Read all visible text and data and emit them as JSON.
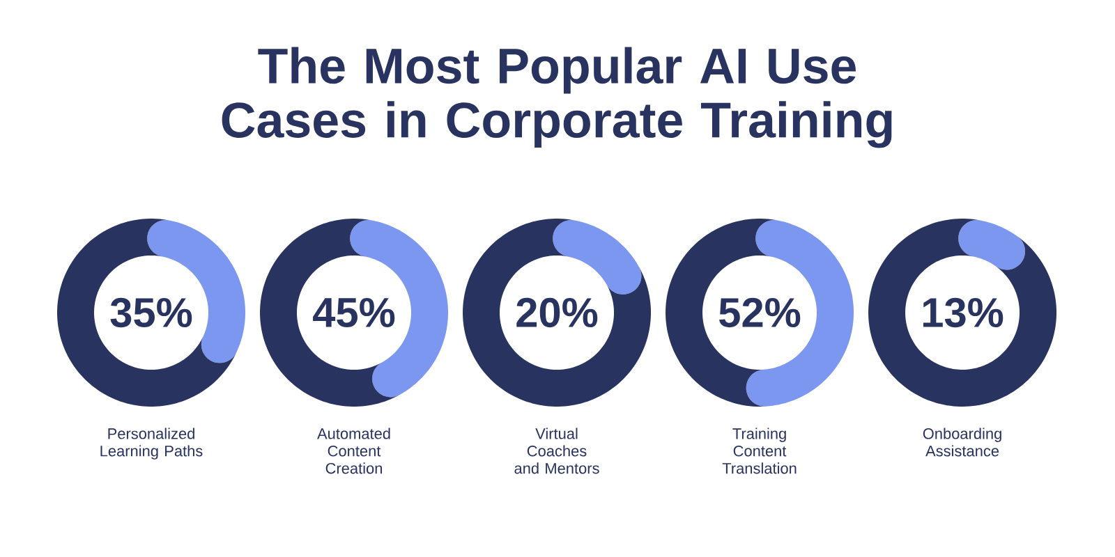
{
  "chart_data": [
    {
      "type": "other",
      "title": "The Most Popular AI Use Cases in Corporate Training"
    },
    {
      "type": "donut",
      "title": "Personalized Learning Paths",
      "categories": [
        null,
        null
      ],
      "values": [
        35,
        65
      ],
      "colors": [
        "#7b97f0",
        "#28335f"
      ],
      "annotations": [
        "35%"
      ]
    },
    {
      "type": "donut",
      "title": "Automated Content Creation",
      "categories": [
        null,
        null
      ],
      "values": [
        45,
        55
      ],
      "colors": [
        "#7b97f0",
        "#28335f"
      ],
      "annotations": [
        "45%"
      ]
    },
    {
      "type": "donut",
      "title": "Virtual Coaches and Mentors",
      "categories": [
        null,
        null
      ],
      "values": [
        20,
        80
      ],
      "colors": [
        "#7b97f0",
        "#28335f"
      ],
      "annotations": [
        "20%"
      ]
    },
    {
      "type": "donut",
      "title": "Training Content Translation",
      "categories": [
        null,
        null
      ],
      "values": [
        52,
        48
      ],
      "colors": [
        "#7b97f0",
        "#28335f"
      ],
      "annotations": [
        "52%"
      ]
    },
    {
      "type": "donut",
      "title": "Onboarding Assistance",
      "categories": [
        null,
        null
      ],
      "values": [
        13,
        87
      ],
      "colors": [
        "#7b97f0",
        "#28335f"
      ],
      "annotations": [
        "13%"
      ]
    }
  ]
}
